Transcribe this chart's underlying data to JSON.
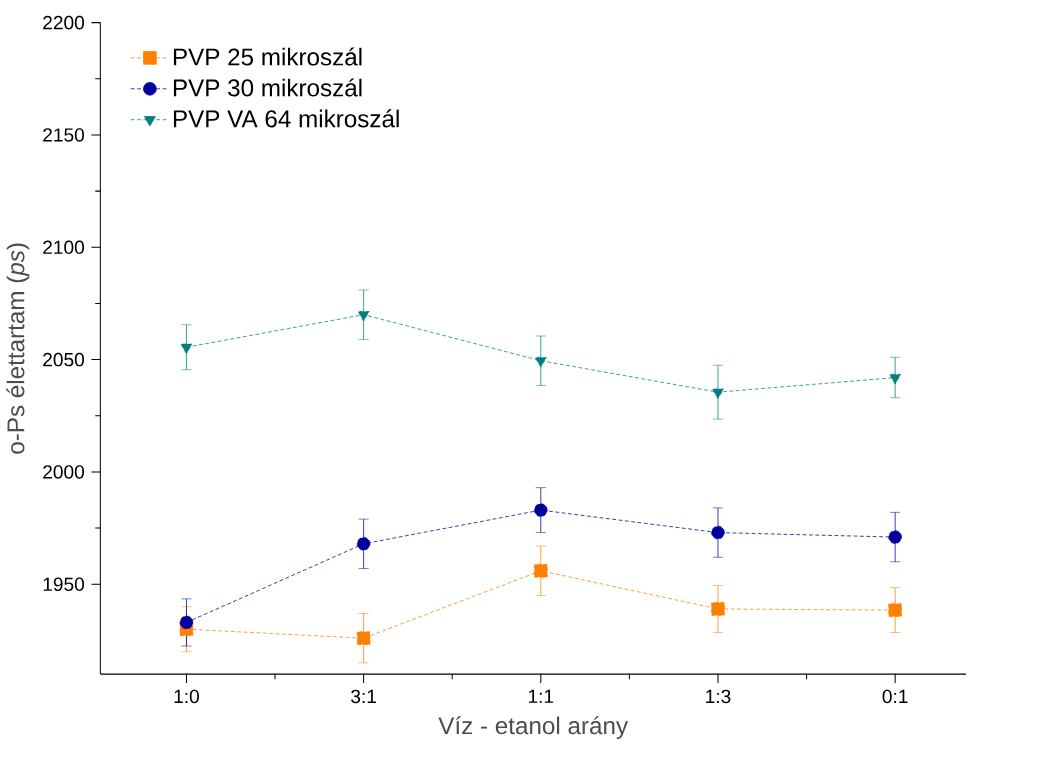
{
  "chart_data": {
    "type": "line",
    "xlabel": "Víz - etanol arány",
    "ylabel": "o-Ps élettartam (*ps*)",
    "categories": [
      "1:0",
      "3:1",
      "1:1",
      "1:3",
      "0:1"
    ],
    "ylim": [
      1910,
      2200
    ],
    "yticks": [
      1950,
      2000,
      2050,
      2100,
      2150,
      2200
    ],
    "legend": "top left",
    "line_style": "dashed",
    "grid": false,
    "series": [
      {
        "name": "PVP 25 mikroszál",
        "color": "#ff8000",
        "marker": "square",
        "values": [
          1930,
          1926,
          1956,
          1939,
          1938.5
        ],
        "errors": [
          10,
          11,
          11,
          10.5,
          10
        ]
      },
      {
        "name": "PVP 30 mikroszál",
        "color": "#00009c",
        "marker": "circle",
        "values": [
          1933,
          1968,
          1983,
          1973,
          1971
        ],
        "errors": [
          10.5,
          11,
          10,
          11,
          11
        ]
      },
      {
        "name": "PVP VA 64 mikroszál",
        "color": "#008080",
        "marker": "triangle",
        "values": [
          2055.5,
          2070,
          2049.5,
          2035.5,
          2042
        ],
        "errors": [
          10,
          11,
          11,
          12,
          9
        ]
      }
    ]
  }
}
